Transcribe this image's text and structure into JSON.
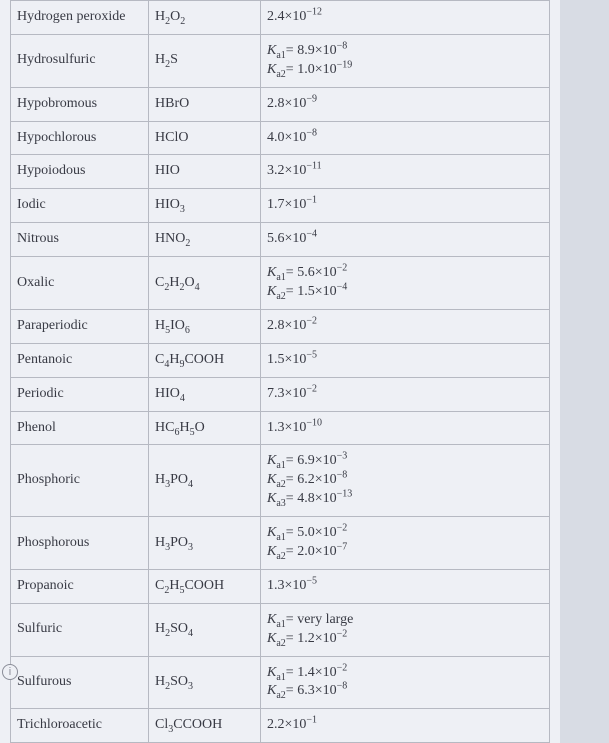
{
  "rows": [
    {
      "name": "Hydrogen peroxide",
      "formula": "H<sub>2</sub>O<sub>2</sub>",
      "ka": "2.4×10<sup>−12</sup>"
    },
    {
      "name": "Hydrosulfuric",
      "formula": "H<sub>2</sub>S",
      "ka": "<span class='italic'>K</span><sub>a1</sub>= 8.9×10<sup>−8</sup><br><span class='italic'>K</span><sub>a2</sub>= 1.0×10<sup>−19</sup>"
    },
    {
      "name": "Hypobromous",
      "formula": "HBrO",
      "ka": "2.8×10<sup>−9</sup>"
    },
    {
      "name": "Hypochlorous",
      "formula": "HClO",
      "ka": "4.0×10<sup>−8</sup>"
    },
    {
      "name": "Hypoiodous",
      "formula": "HIO",
      "ka": "3.2×10<sup>−11</sup>"
    },
    {
      "name": "Iodic",
      "formula": "HIO<sub>3</sub>",
      "ka": "1.7×10<sup>−1</sup>"
    },
    {
      "name": "Nitrous",
      "formula": "HNO<sub>2</sub>",
      "ka": "5.6×10<sup>−4</sup>"
    },
    {
      "name": "Oxalic",
      "formula": "C<sub>2</sub>H<sub>2</sub>O<sub>4</sub>",
      "ka": "<span class='italic'>K</span><sub>a1</sub>= 5.6×10<sup>−2</sup><br><span class='italic'>K</span><sub>a2</sub>= 1.5×10<sup>−4</sup>"
    },
    {
      "name": "Paraperiodic",
      "formula": "H<sub>5</sub>IO<sub>6</sub>",
      "ka": "2.8×10<sup>−2</sup>"
    },
    {
      "name": "Pentanoic",
      "formula": "C<sub>4</sub>H<sub>9</sub>COOH",
      "ka": "1.5×10<sup>−5</sup>"
    },
    {
      "name": "Periodic",
      "formula": "HIO<sub>4</sub>",
      "ka": "7.3×10<sup>−2</sup>"
    },
    {
      "name": "Phenol",
      "formula": "HC<sub>6</sub>H<sub>5</sub>O",
      "ka": "1.3×10<sup>−10</sup>"
    },
    {
      "name": "Phosphoric",
      "formula": "H<sub>3</sub>PO<sub>4</sub>",
      "ka": "<span class='italic'>K</span><sub>a1</sub>= 6.9×10<sup>−3</sup><br><span class='italic'>K</span><sub>a2</sub>= 6.2×10<sup>−8</sup><br><span class='italic'>K</span><sub>a3</sub>= 4.8×10<sup>−13</sup>"
    },
    {
      "name": "Phosphorous",
      "formula": "H<sub>3</sub>PO<sub>3</sub>",
      "ka": "<span class='italic'>K</span><sub>a1</sub>= 5.0×10<sup>−2</sup><br><span class='italic'>K</span><sub>a2</sub>= 2.0×10<sup>−7</sup>"
    },
    {
      "name": "Propanoic",
      "formula": "C<sub>2</sub>H<sub>5</sub>COOH",
      "ka": "1.3×10<sup>−5</sup>"
    },
    {
      "name": "Sulfuric",
      "formula": "H<sub>2</sub>SO<sub>4</sub>",
      "ka": "<span class='italic'>K</span><sub>a1</sub>= very large<br><span class='italic'>K</span><sub>a2</sub>= 1.2×10<sup>−2</sup>"
    },
    {
      "name": "Sulfurous",
      "formula": "H<sub>2</sub>SO<sub>3</sub>",
      "ka": "<span class='italic'>K</span><sub>a1</sub>= 1.4×10<sup>−2</sup><br><span class='italic'>K</span><sub>a2</sub>= 6.3×10<sup>−8</sup>"
    },
    {
      "name": "Trichloroacetic",
      "formula": "Cl<sub>3</sub>CCOOH",
      "ka": "2.2×10<sup>−1</sup>"
    }
  ],
  "hint_glyph": "i"
}
